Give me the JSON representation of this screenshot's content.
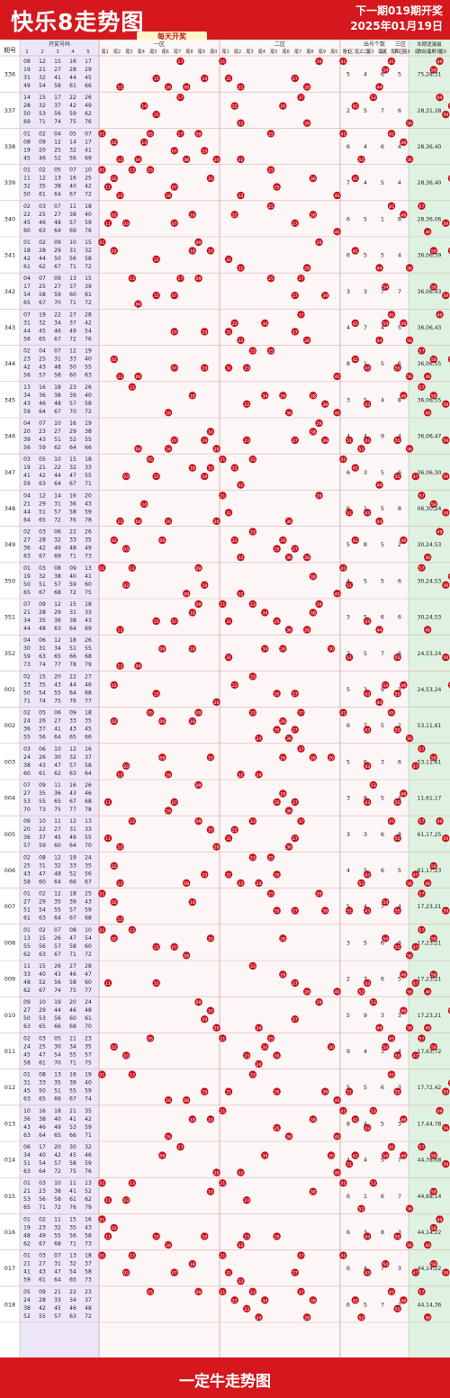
{
  "header": {
    "title": "快乐8走势图",
    "subtitle": "每天开奖",
    "next_draw": "下一期019期开奖",
    "date": "2025年01月19日"
  },
  "footer": {
    "brand": "一定牛走势图"
  },
  "columns": {
    "period": "期号",
    "numbers": "开奖号码",
    "number_idx": [
      "1",
      "2",
      "3",
      "4",
      "5"
    ],
    "zones": [
      "一区",
      "二区",
      "三区",
      "四区"
    ],
    "tails": [
      "尾1",
      "尾2",
      "尾3",
      "尾4",
      "尾5",
      "尾6",
      "尾7",
      "尾8",
      "尾9",
      "尾0"
    ],
    "zone_count": "出号个数",
    "zone_count_cols": [
      "一区",
      "二区",
      "三区",
      "四区"
    ],
    "filter_title": "本期遗漏最",
    "filter_sub": "大前三号码"
  },
  "colors": {
    "brand_red": "#d4181d",
    "ball_red": "#c8101c",
    "side_purple": "#ece6f8",
    "side_green": "#dff2e1",
    "grid_pink": "#f7dede"
  },
  "chart_data": {
    "type": "table",
    "rows": [
      {
        "period": "336",
        "nums": [
          8,
          12,
          15,
          16,
          17,
          19,
          21,
          27,
          28,
          29,
          31,
          32,
          41,
          44,
          45,
          49,
          54,
          58,
          61,
          66,
          71,
          74
        ],
        "counts": [
          5,
          4,
          6,
          5
        ],
        "top3": "75,28,31"
      },
      {
        "period": "337",
        "nums": [
          14,
          15,
          17,
          22,
          26,
          28,
          32,
          37,
          42,
          49,
          50,
          53,
          56,
          59,
          62,
          69,
          71,
          74,
          75,
          76,
          77,
          79
        ],
        "counts": [
          2,
          5,
          7,
          6
        ],
        "top3": "28,31,28"
      },
      {
        "period": "338",
        "nums": [
          1,
          2,
          4,
          5,
          7,
          8,
          9,
          12,
          14,
          17,
          19,
          20,
          25,
          32,
          41,
          45,
          46,
          52,
          56,
          69,
          71,
          77
        ],
        "counts": [
          6,
          4,
          6,
          4
        ],
        "top3": "28,36,40"
      },
      {
        "period": "339",
        "nums": [
          1,
          2,
          5,
          7,
          10,
          11,
          12,
          13,
          16,
          25,
          32,
          35,
          38,
          40,
          42,
          50,
          61,
          64,
          67,
          72,
          76,
          80
        ],
        "counts": [
          7,
          4,
          5,
          4
        ],
        "top3": "28,36,40"
      },
      {
        "period": "340",
        "nums": [
          2,
          3,
          7,
          11,
          18,
          22,
          25,
          27,
          38,
          40,
          45,
          46,
          48,
          57,
          59,
          60,
          63,
          64,
          69,
          76,
          79,
          80
        ],
        "counts": [
          6,
          5,
          1,
          8
        ],
        "top3": "28,36,06"
      },
      {
        "period": "341",
        "nums": [
          1,
          2,
          9,
          10,
          15,
          18,
          28,
          29,
          31,
          32,
          42,
          44,
          50,
          56,
          58,
          61,
          62,
          67,
          71,
          72,
          77,
          80
        ],
        "counts": [
          6,
          5,
          5,
          4
        ],
        "top3": "36,06,39"
      },
      {
        "period": "342",
        "nums": [
          4,
          7,
          9,
          13,
          15,
          17,
          25,
          27,
          37,
          39,
          54,
          58,
          59,
          60,
          61,
          65,
          67,
          70,
          71,
          72,
          74,
          75
        ],
        "counts": [
          3,
          3,
          7,
          7
        ],
        "top3": "36,06,43"
      },
      {
        "period": "343",
        "nums": [
          7,
          19,
          22,
          27,
          28,
          31,
          32,
          34,
          37,
          42,
          44,
          45,
          46,
          49,
          54,
          56,
          65,
          67,
          72,
          76,
          78,
          80
        ],
        "counts": [
          4,
          7,
          4,
          5
        ],
        "top3": "36,06,43"
      },
      {
        "period": "344",
        "nums": [
          2,
          4,
          7,
          12,
          19,
          23,
          25,
          31,
          33,
          40,
          42,
          43,
          48,
          50,
          55,
          56,
          57,
          58,
          60,
          63,
          64,
          73
        ],
        "counts": [
          8,
          1,
          5,
          6
        ],
        "top3": "36,06,55"
      },
      {
        "period": "345",
        "nums": [
          13,
          16,
          18,
          23,
          26,
          34,
          36,
          38,
          39,
          40,
          43,
          46,
          48,
          57,
          58,
          59,
          64,
          67,
          70,
          72,
          73,
          78
        ],
        "counts": [
          3,
          5,
          4,
          8
        ],
        "top3": "36,06,55"
      },
      {
        "period": "346",
        "nums": [
          4,
          7,
          10,
          16,
          19,
          20,
          23,
          27,
          29,
          38,
          39,
          43,
          51,
          52,
          55,
          56,
          59,
          62,
          64,
          66,
          72,
          77
        ],
        "counts": [
          4,
          4,
          9,
          4
        ],
        "top3": "36,06,47"
      },
      {
        "period": "347",
        "nums": [
          3,
          5,
          10,
          15,
          18,
          19,
          21,
          22,
          32,
          33,
          41,
          42,
          44,
          47,
          55,
          59,
          63,
          64,
          67,
          71,
          76,
          77
        ],
        "counts": [
          6,
          3,
          5,
          6
        ],
        "top3": "36,06,30"
      },
      {
        "period": "348",
        "nums": [
          4,
          12,
          14,
          16,
          20,
          21,
          29,
          31,
          36,
          43,
          44,
          51,
          57,
          58,
          59,
          64,
          65,
          72,
          76,
          78,
          79,
          80
        ],
        "counts": [
          6,
          1,
          5,
          8
        ],
        "top3": "06,30,24"
      },
      {
        "period": "349",
        "nums": [
          2,
          3,
          6,
          22,
          26,
          27,
          28,
          32,
          33,
          35,
          36,
          42,
          46,
          48,
          49,
          63,
          67,
          69,
          71,
          73,
          77,
          80
        ],
        "counts": [
          5,
          8,
          5,
          2
        ],
        "top3": "30,24,53"
      },
      {
        "period": "350",
        "nums": [
          1,
          3,
          8,
          9,
          13,
          19,
          32,
          38,
          40,
          41,
          50,
          51,
          57,
          59,
          60,
          65,
          67,
          68,
          72,
          75,
          76,
          80
        ],
        "counts": [
          4,
          5,
          5,
          6
        ],
        "top3": "30,24,53"
      },
      {
        "period": "351",
        "nums": [
          7,
          9,
          12,
          15,
          18,
          21,
          28,
          29,
          31,
          33,
          34,
          35,
          36,
          38,
          43,
          44,
          48,
          63,
          64,
          69,
          76,
          79
        ],
        "counts": [
          3,
          5,
          6,
          6
        ],
        "top3": "30,24,53"
      },
      {
        "period": "352",
        "nums": [
          4,
          6,
          12,
          18,
          26,
          30,
          31,
          34,
          51,
          55,
          59,
          63,
          65,
          66,
          68,
          73,
          74,
          77,
          78,
          79,
          80,
          55
        ],
        "counts": [
          2,
          5,
          7,
          6
        ],
        "top3": "24,53,24"
      },
      {
        "period": "001",
        "nums": [
          2,
          15,
          20,
          22,
          27,
          33,
          35,
          43,
          44,
          46,
          50,
          54,
          55,
          64,
          68,
          71,
          74,
          75,
          76,
          77,
          79,
          80
        ],
        "counts": [
          5,
          3,
          9,
          3
        ],
        "top3": "24,53,24"
      },
      {
        "period": "002",
        "nums": [
          2,
          5,
          6,
          9,
          18,
          24,
          26,
          27,
          33,
          35,
          36,
          37,
          41,
          43,
          45,
          55,
          56,
          64,
          65,
          66,
          69,
          73
        ],
        "counts": [
          6,
          7,
          5,
          2
        ],
        "top3": "53,11,61"
      },
      {
        "period": "003",
        "nums": [
          3,
          6,
          10,
          12,
          16,
          24,
          26,
          30,
          32,
          37,
          38,
          43,
          47,
          57,
          58,
          60,
          61,
          62,
          63,
          64,
          69,
          79
        ],
        "counts": [
          5,
          6,
          3,
          6
        ],
        "top3": "53,11,61"
      },
      {
        "period": "004",
        "nums": [
          7,
          9,
          11,
          16,
          26,
          27,
          35,
          36,
          43,
          46,
          53,
          55,
          65,
          67,
          68,
          70,
          73,
          75,
          77,
          78,
          79,
          80
        ],
        "counts": [
          3,
          8,
          5,
          4
        ],
        "top3": "11,61,17"
      },
      {
        "period": "005",
        "nums": [
          9,
          10,
          11,
          12,
          13,
          20,
          22,
          27,
          31,
          33,
          36,
          37,
          45,
          49,
          55,
          57,
          59,
          60,
          64,
          70,
          76,
          79
        ],
        "counts": [
          3,
          3,
          6,
          8
        ],
        "top3": "61,17,25"
      },
      {
        "period": "006",
        "nums": [
          2,
          8,
          12,
          19,
          24,
          25,
          31,
          32,
          33,
          35,
          43,
          47,
          48,
          52,
          56,
          58,
          60,
          64,
          66,
          67,
          69,
          73
        ],
        "counts": [
          4,
          5,
          6,
          5
        ],
        "top3": "61,17,23"
      },
      {
        "period": "007",
        "nums": [
          1,
          2,
          12,
          18,
          25,
          27,
          29,
          35,
          39,
          43,
          51,
          54,
          55,
          57,
          59,
          61,
          63,
          64,
          67,
          68,
          72,
          78
        ],
        "counts": [
          5,
          4,
          7,
          4
        ],
        "top3": "17,23,21"
      },
      {
        "period": "008",
        "nums": [
          1,
          2,
          7,
          8,
          10,
          13,
          15,
          26,
          47,
          54,
          55,
          56,
          57,
          58,
          60,
          62,
          63,
          67,
          71,
          72,
          75,
          78
        ],
        "counts": [
          3,
          5,
          6,
          6
        ],
        "top3": "17,23,21"
      },
      {
        "period": "009",
        "nums": [
          11,
          15,
          26,
          27,
          28,
          33,
          40,
          43,
          46,
          47,
          48,
          52,
          56,
          58,
          60,
          62,
          67,
          74,
          75,
          77,
          78,
          80
        ],
        "counts": [
          2,
          7,
          6,
          5
        ],
        "top3": "17,23,21"
      },
      {
        "period": "010",
        "nums": [
          9,
          10,
          19,
          20,
          24,
          27,
          29,
          44,
          46,
          48,
          50,
          53,
          56,
          60,
          61,
          63,
          65,
          66,
          68,
          70,
          76,
          79
        ],
        "counts": [
          5,
          9,
          3,
          3
        ],
        "top3": "17,23,21"
      },
      {
        "period": "011",
        "nums": [
          2,
          3,
          5,
          21,
          23,
          24,
          25,
          30,
          34,
          35,
          45,
          47,
          54,
          55,
          57,
          58,
          61,
          70,
          71,
          75,
          77,
          79
        ],
        "counts": [
          9,
          4,
          3,
          4
        ],
        "top3": "17,63,72"
      },
      {
        "period": "012",
        "nums": [
          1,
          8,
          13,
          16,
          19,
          31,
          33,
          35,
          39,
          40,
          45,
          50,
          51,
          55,
          59,
          63,
          65,
          66,
          67,
          74,
          77,
          78
        ],
        "counts": [
          5,
          5,
          6,
          3
        ],
        "top3": "17,72,42"
      },
      {
        "period": "013",
        "nums": [
          10,
          16,
          18,
          21,
          35,
          36,
          38,
          40,
          41,
          42,
          43,
          46,
          49,
          53,
          59,
          63,
          64,
          65,
          66,
          71,
          75,
          79
        ],
        "counts": [
          8,
          4,
          5,
          3
        ],
        "top3": "17,44,78"
      },
      {
        "period": "014",
        "nums": [
          6,
          17,
          20,
          30,
          32,
          34,
          40,
          42,
          45,
          46,
          51,
          54,
          57,
          58,
          59,
          63,
          64,
          72,
          75,
          76,
          78,
          79
        ],
        "counts": [
          4,
          4,
          5,
          7
        ],
        "top3": "44,78,68"
      },
      {
        "period": "015",
        "nums": [
          1,
          3,
          10,
          11,
          13,
          21,
          23,
          38,
          41,
          52,
          53,
          56,
          58,
          61,
          62,
          65,
          71,
          72,
          76,
          79,
          21,
          53
        ],
        "counts": [
          6,
          1,
          6,
          7
        ],
        "top3": "44,68,14"
      },
      {
        "period": "016",
        "nums": [
          1,
          2,
          11,
          15,
          16,
          19,
          23,
          32,
          35,
          43,
          48,
          49,
          55,
          56,
          58,
          62,
          67,
          68,
          71,
          73,
          78,
          80
        ],
        "counts": [
          6,
          3,
          8,
          3
        ],
        "top3": "44,14,22"
      },
      {
        "period": "017",
        "nums": [
          1,
          3,
          7,
          13,
          18,
          21,
          27,
          31,
          32,
          37,
          41,
          43,
          47,
          54,
          58,
          59,
          61,
          64,
          65,
          73,
          75,
          80
        ],
        "counts": [
          6,
          4,
          7,
          3
        ],
        "top3": "44,14,22"
      },
      {
        "period": "018",
        "nums": [
          5,
          9,
          21,
          22,
          23,
          24,
          28,
          33,
          34,
          37,
          38,
          42,
          45,
          46,
          48,
          52,
          55,
          57,
          63,
          72,
          74,
          76
        ],
        "counts": [
          6,
          5,
          7,
          2
        ],
        "top3": "44,14,36"
      }
    ]
  }
}
